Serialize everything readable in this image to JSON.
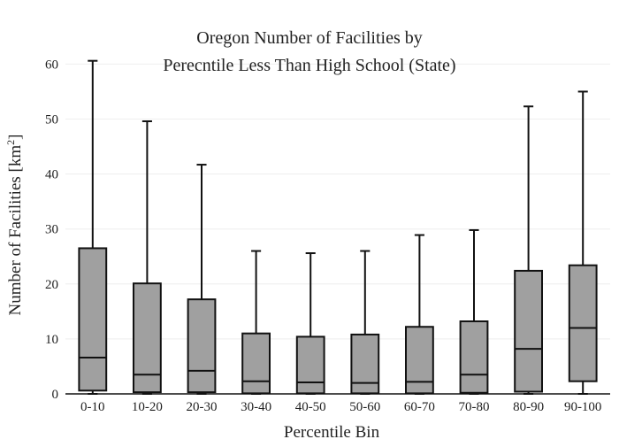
{
  "chart_data": {
    "type": "box",
    "title_lines": [
      "Oregon Number of Facilities by",
      "Perecntile Less Than High School (State)"
    ],
    "xlabel": "Percentile Bin",
    "ylabel_text": "Number of Facilities  [km",
    "ylabel_sup": "2",
    "ylabel_close": "]",
    "ylim": [
      0,
      62
    ],
    "yticks": [
      0,
      10,
      20,
      30,
      40,
      50,
      60
    ],
    "grid": true,
    "box_color": "#a0a0a0",
    "line_color": "#111111",
    "categories": [
      "0-10",
      "10-20",
      "20-30",
      "30-40",
      "40-50",
      "50-60",
      "60-70",
      "70-80",
      "80-90",
      "90-100"
    ],
    "boxes": [
      {
        "category": "0-10",
        "whisker_low": 0.0,
        "q1": 0.6,
        "median": 6.6,
        "q3": 26.5,
        "whisker_high": 60.6
      },
      {
        "category": "10-20",
        "whisker_low": 0.0,
        "q1": 0.3,
        "median": 3.5,
        "q3": 20.1,
        "whisker_high": 49.6
      },
      {
        "category": "20-30",
        "whisker_low": 0.0,
        "q1": 0.3,
        "median": 4.2,
        "q3": 17.2,
        "whisker_high": 41.7
      },
      {
        "category": "30-40",
        "whisker_low": 0.0,
        "q1": 0.1,
        "median": 2.3,
        "q3": 11.0,
        "whisker_high": 26.0
      },
      {
        "category": "40-50",
        "whisker_low": 0.0,
        "q1": 0.1,
        "median": 2.1,
        "q3": 10.4,
        "whisker_high": 25.6
      },
      {
        "category": "50-60",
        "whisker_low": 0.0,
        "q1": 0.1,
        "median": 2.0,
        "q3": 10.8,
        "whisker_high": 26.0
      },
      {
        "category": "60-70",
        "whisker_low": 0.0,
        "q1": 0.1,
        "median": 2.2,
        "q3": 12.2,
        "whisker_high": 28.9
      },
      {
        "category": "70-80",
        "whisker_low": 0.0,
        "q1": 0.2,
        "median": 3.5,
        "q3": 13.2,
        "whisker_high": 29.8
      },
      {
        "category": "80-90",
        "whisker_low": 0.0,
        "q1": 0.4,
        "median": 8.2,
        "q3": 22.4,
        "whisker_high": 52.3
      },
      {
        "category": "90-100",
        "whisker_low": 0.0,
        "q1": 2.3,
        "median": 12.0,
        "q3": 23.4,
        "whisker_high": 55.0
      }
    ]
  }
}
